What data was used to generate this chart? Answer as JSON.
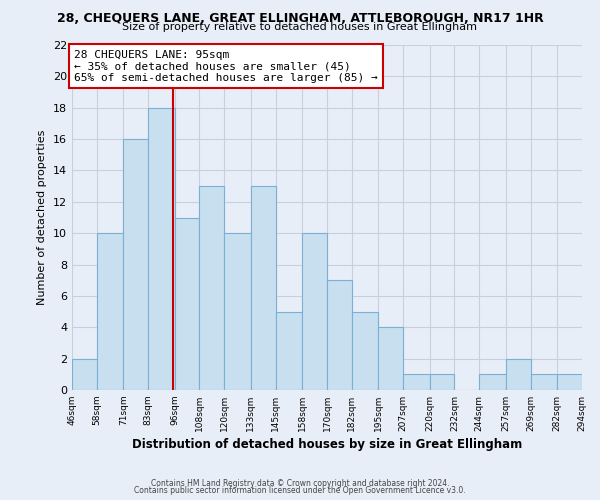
{
  "title": "28, CHEQUERS LANE, GREAT ELLINGHAM, ATTLEBOROUGH, NR17 1HR",
  "subtitle": "Size of property relative to detached houses in Great Ellingham",
  "xlabel": "Distribution of detached houses by size in Great Ellingham",
  "ylabel": "Number of detached properties",
  "bar_color": "#c8dff0",
  "bar_edge_color": "#7bafd4",
  "bins": [
    46,
    58,
    71,
    83,
    96,
    108,
    120,
    133,
    145,
    158,
    170,
    182,
    195,
    207,
    220,
    232,
    244,
    257,
    269,
    282,
    294
  ],
  "counts": [
    2,
    10,
    16,
    18,
    11,
    13,
    10,
    13,
    5,
    10,
    7,
    5,
    4,
    1,
    1,
    0,
    1,
    2,
    1,
    1
  ],
  "tick_labels": [
    "46sqm",
    "58sqm",
    "71sqm",
    "83sqm",
    "96sqm",
    "108sqm",
    "120sqm",
    "133sqm",
    "145sqm",
    "158sqm",
    "170sqm",
    "182sqm",
    "195sqm",
    "207sqm",
    "220sqm",
    "232sqm",
    "244sqm",
    "257sqm",
    "269sqm",
    "282sqm",
    "294sqm"
  ],
  "vline_x": 95,
  "vline_color": "#cc0000",
  "annotation_title": "28 CHEQUERS LANE: 95sqm",
  "annotation_line1": "← 35% of detached houses are smaller (45)",
  "annotation_line2": "65% of semi-detached houses are larger (85) →",
  "annotation_box_color": "#ffffff",
  "annotation_box_edge": "#cc0000",
  "ylim": [
    0,
    22
  ],
  "yticks": [
    0,
    2,
    4,
    6,
    8,
    10,
    12,
    14,
    16,
    18,
    20,
    22
  ],
  "footer1": "Contains HM Land Registry data © Crown copyright and database right 2024.",
  "footer2": "Contains public sector information licensed under the Open Government Licence v3.0.",
  "bg_color": "#e8eef8",
  "grid_color": "#c8d0e0"
}
